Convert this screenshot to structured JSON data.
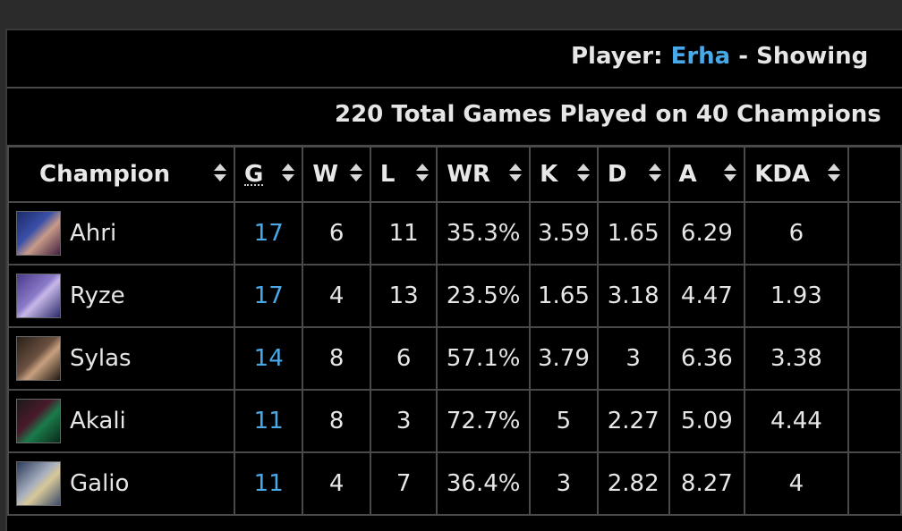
{
  "header": {
    "player_prefix": "Player:",
    "player_name": "Erha",
    "player_suffix": "- Showing",
    "summary": "220 Total Games Played on 40 Champions"
  },
  "columns": [
    "Champion",
    "G",
    "W",
    "L",
    "WR",
    "K",
    "D",
    "A",
    "KDA"
  ],
  "rows": [
    {
      "champion": "Ahri",
      "icon": "ahri-portrait-icon",
      "g": "17",
      "w": "6",
      "l": "11",
      "wr": "35.3%",
      "k": "3.59",
      "d": "1.65",
      "a": "6.29",
      "kda": "6"
    },
    {
      "champion": "Ryze",
      "icon": "ryze-portrait-icon",
      "g": "17",
      "w": "4",
      "l": "13",
      "wr": "23.5%",
      "k": "1.65",
      "d": "3.18",
      "a": "4.47",
      "kda": "1.93"
    },
    {
      "champion": "Sylas",
      "icon": "sylas-portrait-icon",
      "g": "14",
      "w": "8",
      "l": "6",
      "wr": "57.1%",
      "k": "3.79",
      "d": "3",
      "a": "6.36",
      "kda": "3.38"
    },
    {
      "champion": "Akali",
      "icon": "akali-portrait-icon",
      "g": "11",
      "w": "8",
      "l": "3",
      "wr": "72.7%",
      "k": "5",
      "d": "2.27",
      "a": "5.09",
      "kda": "4.44"
    },
    {
      "champion": "Galio",
      "icon": "galio-portrait-icon",
      "g": "11",
      "w": "4",
      "l": "7",
      "wr": "36.4%",
      "k": "3",
      "d": "2.82",
      "a": "8.27",
      "kda": "4"
    }
  ],
  "colors": {
    "link": "#48a8e8",
    "background": "#000000",
    "border": "#4a4a4a"
  }
}
